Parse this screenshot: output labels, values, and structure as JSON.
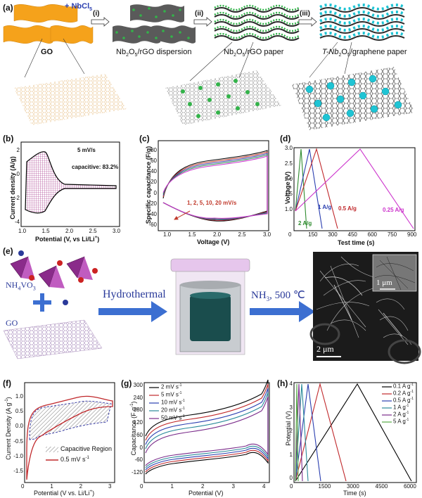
{
  "panel_labels": {
    "a": "(a)",
    "b": "(b)",
    "c": "(c)",
    "d": "(d)",
    "e": "(e)",
    "f": "(f)",
    "g": "(g)",
    "h": "(h)"
  },
  "panel_a": {
    "nbcl5": "+ NbCl",
    "nbcl5_sub": "5",
    "step_i": "(i)",
    "step_ii": "(ii)",
    "step_iii": "(iii)",
    "go": "GO",
    "dispersion_pre": "Nb",
    "dispersion_mid": "O",
    "dispersion_post": "/rGO dispersion",
    "paper_post": "/rGO paper",
    "tnb_pre": "T-Nb",
    "tnb_post": "/graphene paper",
    "sub2": "2",
    "sub5": "5",
    "colors": {
      "go": "#f5a21b",
      "green": "#33b34a",
      "cyan": "#1fc4d4"
    }
  },
  "panel_b": {
    "ylabel": "Current density (A/g)",
    "xlabel": "Potential (V, vs Li/Li",
    "xlabel_sup": "+",
    "xlabel_end": ")",
    "rate": "5 mV/s",
    "capacitive": "capacitive: 83.2%",
    "xticks": [
      "1.0",
      "1.5",
      "2.0",
      "2.5",
      "3.0"
    ],
    "yticks": [
      "2",
      "0",
      "-2",
      "-4"
    ],
    "color": "#9c1f7f"
  },
  "panel_c": {
    "ylabel": "Specific capacitance (F/g)",
    "xlabel": "Voltage (V)",
    "annotation": "1, 2, 5, 10, 20 mV/s",
    "xticks": [
      "1.0",
      "1.5",
      "2.0",
      "2.5",
      "3.0"
    ],
    "yticks": [
      "80",
      "60",
      "40",
      "20",
      "0",
      "-20",
      "-40",
      "-60"
    ],
    "colors": [
      "#000000",
      "#c0392b",
      "#3b3fa6",
      "#2e8b57",
      "#cc33cc"
    ]
  },
  "panel_d": {
    "ylabel": "Voltage (V)",
    "xlabel": "Test time (s)",
    "xticks": [
      "0",
      "150",
      "300",
      "450",
      "600",
      "750",
      "900"
    ],
    "yticks": [
      "3.0",
      "2.5",
      "2.0",
      "1.5",
      "1.0"
    ],
    "labels": [
      {
        "text": "2 A/g",
        "color": "#2e8b2e"
      },
      {
        "text": "1 A/g",
        "color": "#2b3fb0"
      },
      {
        "text": "0.5 A/g",
        "color": "#c0282b"
      },
      {
        "text": "0.25 A/g",
        "color": "#cc33cc"
      }
    ]
  },
  "panel_e": {
    "nh4vo3_pre": "NH",
    "nh4vo3_mid": "VO",
    "sub4": "4",
    "sub3": "3",
    "go": "GO",
    "hydrothermal": "Hydrothermal",
    "nh3": "NH",
    "nh3_post": ", 500 ℃",
    "scale_big": "2 μm",
    "scale_small": "1 μm",
    "colors": {
      "arrow": "#3c6fd1",
      "vo": "#8a2b8a",
      "jar": "#1a4d4d"
    }
  },
  "panel_f": {
    "ylabel": "Current Density (A g",
    "ylabel_sup": "-1",
    "ylabel_end": ")",
    "xlabel": "Potential (V vs. Li/Li",
    "xlabel_sup": "+",
    "xlabel_end": ")",
    "legend": [
      "Capacitive Region",
      "0.5 mV s"
    ],
    "legend_sup": "-1",
    "xticks": [
      "0",
      "1",
      "2",
      "3"
    ],
    "yticks": [
      "1.0",
      "0.5",
      "0.0",
      "-0.5",
      "-1.0",
      "-1.5"
    ],
    "colors": {
      "red": "#c0282b",
      "blue": "#3b3fa6"
    }
  },
  "panel_g": {
    "ylabel": "Capacitance (F g",
    "ylabel_sup": "-1",
    "ylabel_end": ")",
    "xlabel": "Potential (V)",
    "legend": [
      "2 mV s",
      "5 mV s",
      "10 mV s",
      "20 mV s",
      "50 mV s"
    ],
    "legend_sup": "-1",
    "xticks": [
      "0",
      "1",
      "2",
      "3",
      "4"
    ],
    "yticks": [
      "300",
      "240",
      "180",
      "120",
      "60",
      "0",
      "-60",
      "-120"
    ],
    "colors": [
      "#000000",
      "#c0282b",
      "#2b3fb0",
      "#2a8a9a",
      "#7a2b8a"
    ]
  },
  "panel_h": {
    "ylabel": "Potential (V)",
    "xlabel": "Time (s)",
    "legend": [
      "0.1 A g",
      "0.2 A g",
      "0.5 A g",
      "1 A g",
      "2 A g",
      "5 A g"
    ],
    "legend_sup": "-1",
    "xticks": [
      "0",
      "1500",
      "3000",
      "4500",
      "6000"
    ],
    "yticks": [
      "4",
      "3",
      "2",
      "1",
      "0"
    ],
    "colors": [
      "#000000",
      "#c0282b",
      "#2b3fb0",
      "#2a8a9a",
      "#7a2b8a",
      "#55aa44"
    ]
  }
}
